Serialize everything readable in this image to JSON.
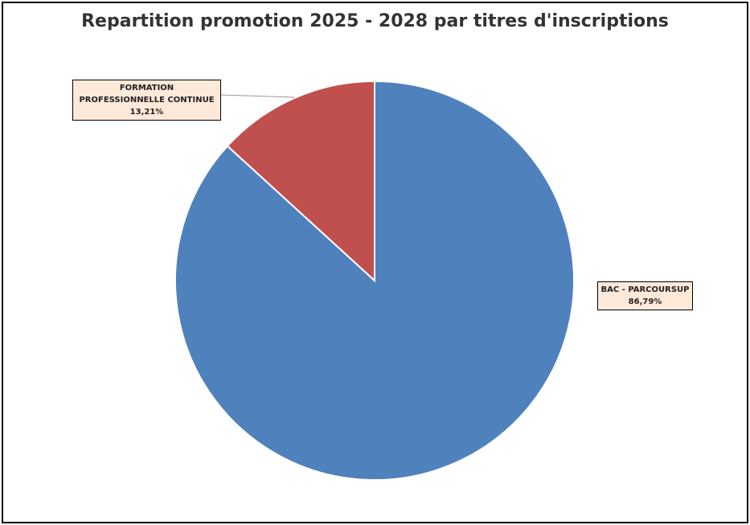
{
  "chart_data": {
    "type": "pie",
    "title": "Repartition promotion 2025 - 2028 par titres d'inscriptions",
    "categories": [
      "BAC - PARCOURSUP",
      "FORMATION PROFESSIONNELLE CONTINUE"
    ],
    "values": [
      86.79,
      13.21
    ],
    "value_labels": [
      "86,79%",
      "13,21%"
    ],
    "colors": [
      "#4f81bd",
      "#c0504d"
    ]
  }
}
